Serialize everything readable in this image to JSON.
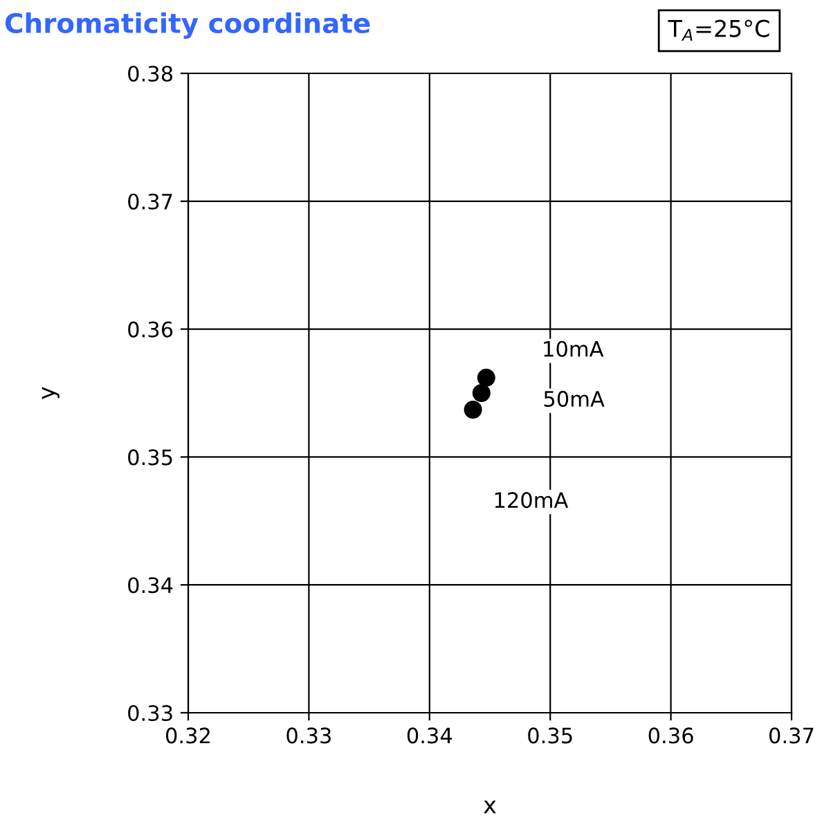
{
  "chart_data": {
    "type": "scatter",
    "title": "Chromaticity coordinate",
    "xlabel": "x",
    "ylabel": "y",
    "x": [
      0.3447,
      0.3443,
      0.3436
    ],
    "series": [
      {
        "color": "#000000",
        "values": [
          0.3562,
          0.355,
          0.3537
        ]
      }
    ],
    "grid": true,
    "xlim": [
      0.32,
      0.37
    ],
    "ylim": [
      0.33,
      0.38
    ],
    "xticks": [
      {
        "value": 0.32,
        "label": "0.32"
      },
      {
        "value": 0.33,
        "label": "0.33"
      },
      {
        "value": 0.34,
        "label": "0.34"
      },
      {
        "value": 0.35,
        "label": "0.35"
      },
      {
        "value": 0.36,
        "label": "0.36"
      },
      {
        "value": 0.37,
        "label": "0.37"
      }
    ],
    "yticks": [
      {
        "value": 0.33,
        "label": "0.33"
      },
      {
        "value": 0.34,
        "label": "0.34"
      },
      {
        "value": 0.35,
        "label": "0.35"
      },
      {
        "value": 0.36,
        "label": "0.36"
      },
      {
        "value": 0.37,
        "label": "0.37"
      },
      {
        "value": 0.38,
        "label": "0.38"
      }
    ],
    "annotations": [
      "10mA",
      "50mA",
      "120mA",
      "T$_{A}$=25°C"
    ]
  }
}
